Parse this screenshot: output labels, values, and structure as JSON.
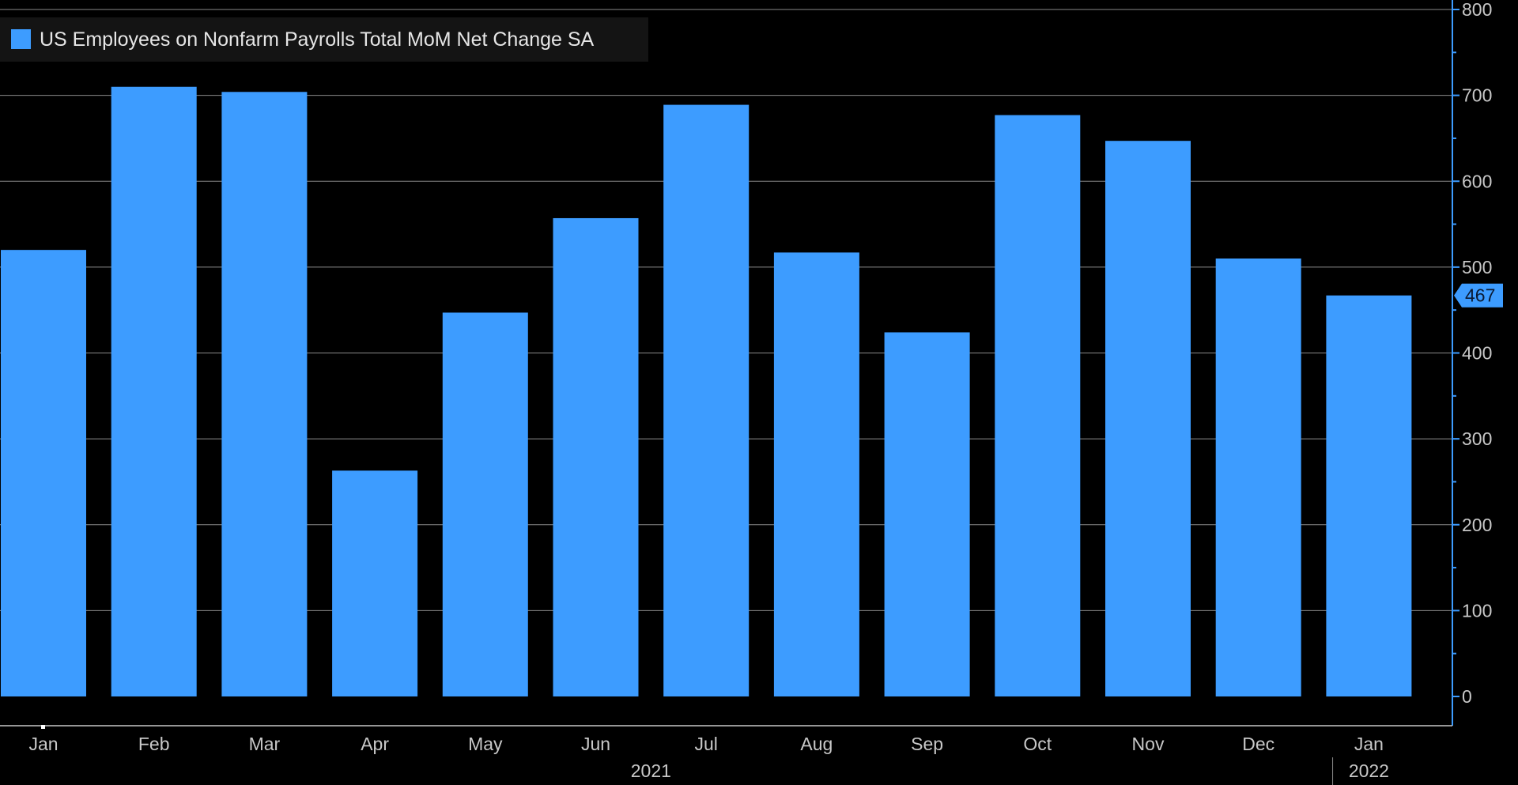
{
  "chart_data": {
    "type": "bar",
    "title": "",
    "xlabel": "",
    "ylabel": "",
    "legend": {
      "placement": "top-left",
      "entries": [
        "US Employees on Nonfarm Payrolls Total MoM Net Change SA"
      ]
    },
    "categories": [
      "Jan",
      "Feb",
      "Mar",
      "Apr",
      "May",
      "Jun",
      "Jul",
      "Aug",
      "Sep",
      "Oct",
      "Nov",
      "Dec",
      "Jan"
    ],
    "series": [
      {
        "name": "US Employees on Nonfarm Payrolls Total MoM Net Change SA",
        "values": [
          520,
          710,
          704,
          263,
          447,
          557,
          689,
          517,
          424,
          677,
          647,
          510,
          467
        ],
        "color": "#3d9cff"
      }
    ],
    "year_labels": [
      {
        "label": "2021",
        "start_index": 0,
        "end_index": 11
      },
      {
        "label": "2022",
        "start_index": 12,
        "end_index": 12
      }
    ],
    "ylim": [
      0,
      800
    ],
    "yticks": [
      0,
      100,
      200,
      300,
      400,
      500,
      600,
      700,
      800
    ],
    "last_value_marker": "467",
    "grid": true,
    "background": "#000000",
    "text_color": "#c8c8c8",
    "axis_color": "#3d9cff"
  }
}
